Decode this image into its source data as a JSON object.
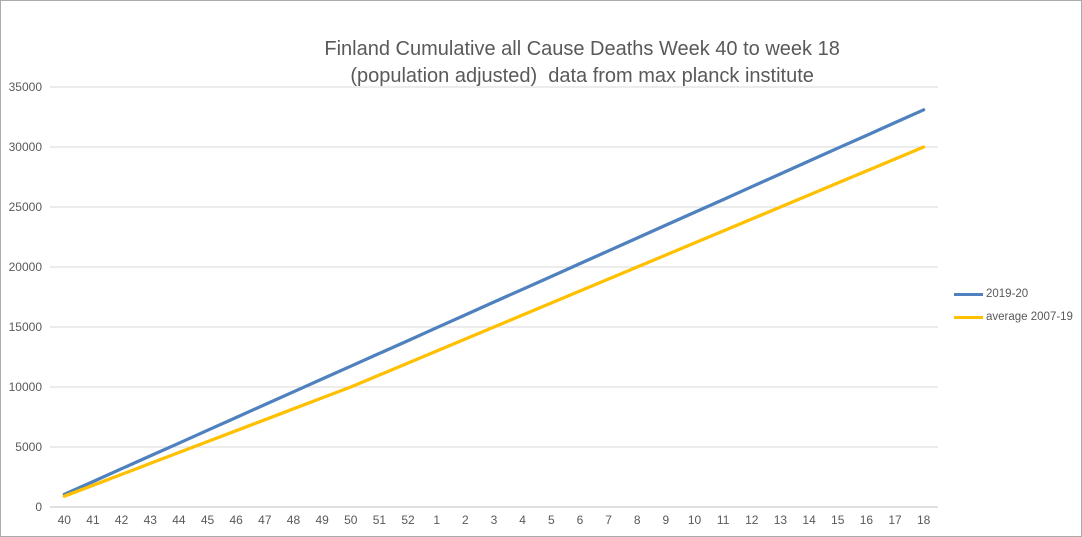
{
  "window": {
    "background": "#ffffff",
    "border_color": "#ababab"
  },
  "chart_data": {
    "type": "line",
    "title": "Finland Cumulative all Cause Deaths Week 40 to week 18 (population adjusted)  data from max planck institute",
    "categories": [
      "40",
      "41",
      "42",
      "43",
      "44",
      "45",
      "46",
      "47",
      "48",
      "49",
      "50",
      "51",
      "52",
      "1",
      "2",
      "3",
      "4",
      "5",
      "6",
      "7",
      "8",
      "9",
      "10",
      "11",
      "12",
      "13",
      "14",
      "15",
      "16",
      "17",
      "18"
    ],
    "series": [
      {
        "name": "2019-20",
        "color": "#4E81BD",
        "values": [
          1050,
          2120,
          3190,
          4260,
          5320,
          6390,
          7460,
          8530,
          9600,
          10670,
          11730,
          12800,
          13870,
          14940,
          16010,
          17080,
          18140,
          19210,
          20280,
          21350,
          22420,
          23490,
          24550,
          25620,
          26690,
          27760,
          28830,
          29900,
          30960,
          32030,
          33100
        ]
      },
      {
        "name": "average 2007-19",
        "color": "#FFC000",
        "values": [
          900,
          1810,
          2720,
          3630,
          4540,
          5450,
          6360,
          7270,
          8180,
          9090,
          10000,
          11000,
          12000,
          13000,
          14000,
          15000,
          16000,
          17000,
          18000,
          19000,
          20000,
          21000,
          22000,
          23000,
          24000,
          25000,
          26000,
          27000,
          28000,
          29000,
          30000
        ]
      }
    ],
    "y_ticks": [
      0,
      5000,
      10000,
      15000,
      20000,
      25000,
      30000,
      35000
    ],
    "ylim": [
      0,
      35000
    ],
    "grid": true,
    "legend_position": "right",
    "colors": {
      "gridline": "#D9D9D9",
      "axis_line": "#BFBFBF",
      "text": "#595959"
    }
  }
}
